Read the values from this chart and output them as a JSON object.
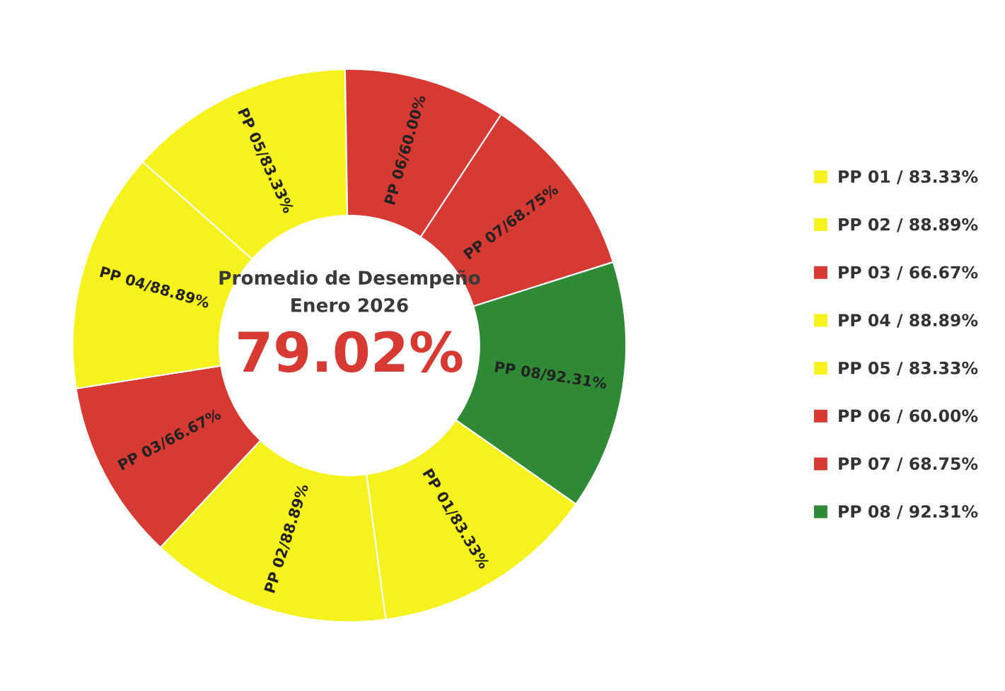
{
  "chart_data": {
    "type": "donut",
    "title": "Promedio de Desempeño",
    "subtitle": "Enero 2026",
    "annotations": [
      "79.02%"
    ],
    "categories": [
      "PP 01 / 83.33%",
      "PP 02 / 88.89%",
      "PP 03 / 66.67%",
      "PP 04 / 88.89%",
      "PP 05 / 83.33%",
      "PP 06 / 60.00%",
      "PP 07 / 68.75%",
      "PP 08 / 92.31%"
    ],
    "values": [
      83.33,
      88.89,
      66.67,
      88.89,
      83.33,
      60.0,
      68.75,
      92.31
    ],
    "value_labels": [
      "PP 01/83.33%",
      "PP 02/88.89%",
      "PP 03/66.67%",
      "PP 04/88.89%",
      "PP 05/83.33%",
      "PP 06/60.00%",
      "PP 07/68.75%",
      "PP 08/92.31%"
    ],
    "colors": [
      "#f5f21e",
      "#f5f21e",
      "#d73a33",
      "#f5f21e",
      "#f5f21e",
      "#d73a33",
      "#d73a33",
      "#2f8a35"
    ],
    "data_labels": true,
    "legend": "right"
  }
}
